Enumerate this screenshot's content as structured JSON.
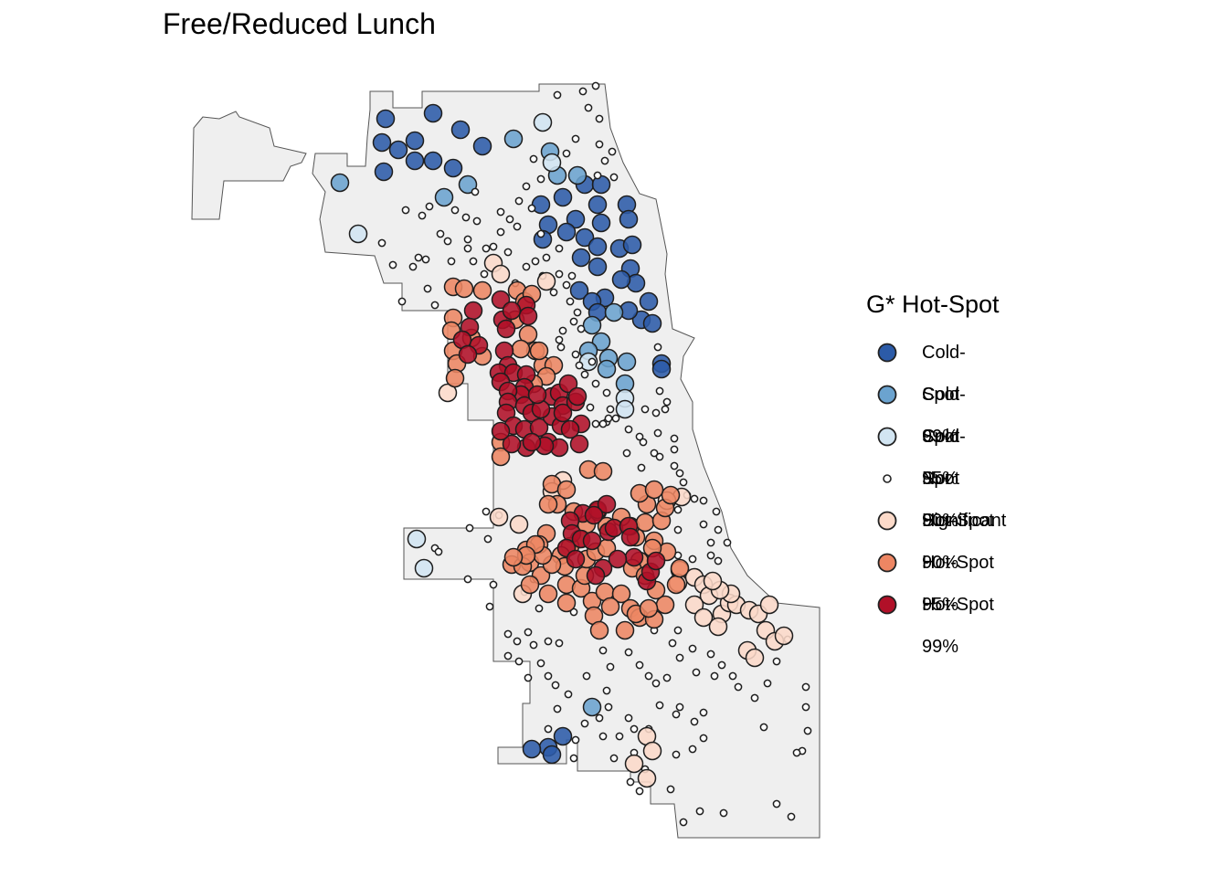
{
  "title": "Free/Reduced Lunch",
  "legend": {
    "title": "G* Hot-Spot",
    "items": [
      {
        "label": "Cold-Spot 99%",
        "color": "#2c5ba8",
        "size": "large"
      },
      {
        "label": "Cold-Spot 95%",
        "color": "#6ba3cf",
        "size": "large"
      },
      {
        "label": "Cold-Spot 90%",
        "color": "#d2e5f2",
        "size": "large"
      },
      {
        "label": "Not Significant",
        "color": "#ffffff",
        "size": "small"
      },
      {
        "label": "Hot-Spot 90%",
        "color": "#fcdac9",
        "size": "large"
      },
      {
        "label": "Hot-Spot 95%",
        "color": "#ed8663",
        "size": "large"
      },
      {
        "label": "Hot-Spot 99%",
        "color": "#b11028",
        "size": "large"
      }
    ]
  },
  "map": {
    "region": "Chicago",
    "fill_color": "#efefef",
    "outline_color": "#555555"
  }
}
